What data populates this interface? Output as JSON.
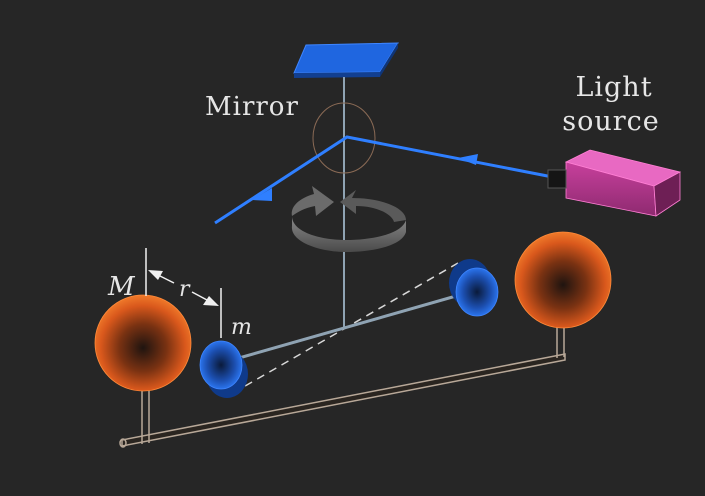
{
  "labels": {
    "mirror": "Mirror",
    "light_source_line1": "Light",
    "light_source_line2": "source",
    "large_mass": "M",
    "small_mass": "m",
    "distance": "r"
  },
  "colors": {
    "background": "#262626",
    "light_beam": "#2f7fff",
    "mirror": "#1a5fd6",
    "light_source": "#e04fb0",
    "large_sphere": "#e0631f",
    "small_mass": "#1f6fe0",
    "frame": "#b8a898",
    "rod": "#8fa3b3",
    "rotation_arrow": "#7a7a7a"
  },
  "icons": {
    "rotation": "rotation-arrow-icon",
    "beam_direction": "arrowhead-icon"
  }
}
